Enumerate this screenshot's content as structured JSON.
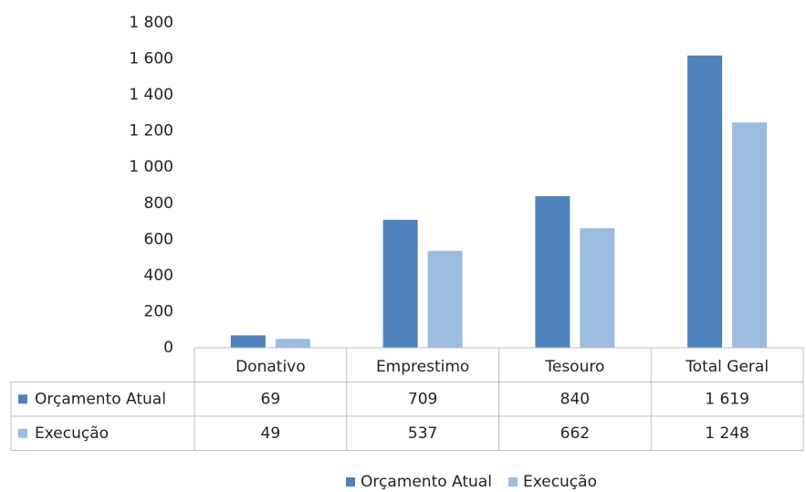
{
  "chart_data": {
    "type": "bar",
    "categories": [
      "Donativo",
      "Emprestimo",
      "Tesouro",
      "Total Geral"
    ],
    "series": [
      {
        "name": "Orçamento Atual",
        "color": "#4f81bd",
        "values": [
          69,
          709,
          840,
          1619
        ],
        "value_labels": [
          "69",
          "709",
          "840",
          "1 619"
        ]
      },
      {
        "name": "Execução",
        "color": "#9bbbe0",
        "values": [
          49,
          537,
          662,
          1248
        ],
        "value_labels": [
          "49",
          "537",
          "662",
          "1 248"
        ]
      }
    ],
    "ylim": [
      0,
      1800
    ],
    "yticks": [
      0,
      200,
      400,
      600,
      800,
      {
        "value": 1000,
        "label": "1 000"
      },
      {
        "value": 1200,
        "label": "1 200"
      },
      {
        "value": 1400,
        "label": "1 400"
      },
      {
        "value": 1600,
        "label": "1 600"
      },
      {
        "value": 1800,
        "label": "1 800"
      }
    ],
    "grid": false,
    "legend": "bottom"
  }
}
